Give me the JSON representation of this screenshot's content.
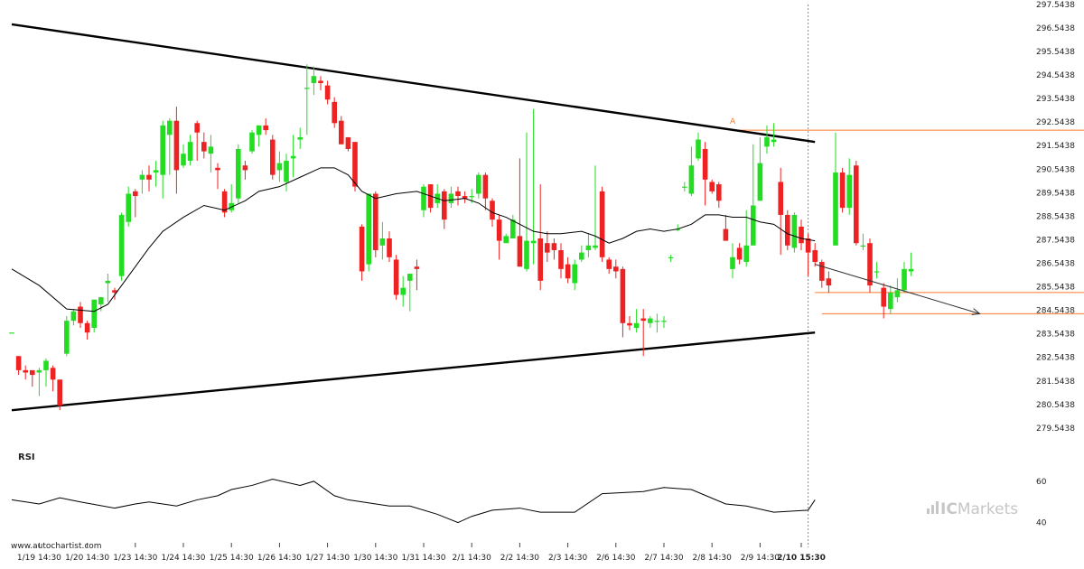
{
  "chart_data": {
    "type": "candlestick",
    "rsi_label": "RSI",
    "watermark": "www.autochartist.com",
    "brand": {
      "prefix": "IC",
      "name": "Markets"
    },
    "pattern_point_label": "A",
    "colors": {
      "up": "#22dd22",
      "down": "#ee2222",
      "level": "#ff7a2a",
      "trend": "#000000",
      "ma": "#000000"
    },
    "price_axis": {
      "ylim": [
        279.04,
        297.54
      ],
      "ticks": [
        "297.5438",
        "296.5438",
        "295.5438",
        "294.5438",
        "293.5438",
        "292.5438",
        "291.5438",
        "290.5438",
        "289.5438",
        "288.5438",
        "287.5438",
        "286.5438",
        "285.5438",
        "284.5438",
        "283.5438",
        "282.5438",
        "281.5438",
        "280.5438",
        "279.5438"
      ]
    },
    "rsi_axis": {
      "ylim": [
        35,
        70
      ],
      "ticks": [
        "60",
        "40"
      ]
    },
    "x_axis": {
      "ticks": [
        {
          "i": 4,
          "label": "1/19 14:30"
        },
        {
          "i": 11,
          "label": "1/20 14:30"
        },
        {
          "i": 18,
          "label": "1/23 14:30"
        },
        {
          "i": 25,
          "label": "1/24 14:30"
        },
        {
          "i": 32,
          "label": "1/25 14:30"
        },
        {
          "i": 39,
          "label": "1/26 14:30"
        },
        {
          "i": 46,
          "label": "1/27 14:30"
        },
        {
          "i": 53,
          "label": "1/30 14:30"
        },
        {
          "i": 60,
          "label": "1/31 14:30"
        },
        {
          "i": 67,
          "label": "2/1 14:30"
        },
        {
          "i": 74,
          "label": "2/2 14:30"
        },
        {
          "i": 81,
          "label": "2/3 14:30"
        },
        {
          "i": 88,
          "label": "2/6 14:30"
        },
        {
          "i": 95,
          "label": "2/7 14:30"
        },
        {
          "i": 102,
          "label": "2/8 14:30"
        },
        {
          "i": 109,
          "label": "2/9 14:30"
        },
        {
          "i": 115,
          "label": "2/10 15:30",
          "bold": true
        }
      ]
    },
    "candles": [
      [
        283.6,
        283.6,
        283.6,
        283.6
      ],
      [
        282.6,
        282.0,
        282.6,
        281.8
      ],
      [
        282.0,
        281.9,
        282.2,
        281.6
      ],
      [
        282.0,
        281.8,
        282.0,
        281.3
      ],
      [
        281.9,
        282.0,
        282.1,
        280.9
      ],
      [
        282.0,
        282.4,
        282.5,
        281.3
      ],
      [
        282.1,
        281.6,
        282.2,
        281.1
      ],
      [
        281.6,
        280.5,
        281.6,
        280.3
      ],
      [
        282.7,
        284.1,
        284.3,
        282.6
      ],
      [
        284.1,
        284.5,
        284.6,
        283.9
      ],
      [
        284.7,
        284.0,
        284.9,
        283.8
      ],
      [
        284.0,
        283.6,
        284.1,
        283.3
      ],
      [
        283.8,
        285.0,
        285.0,
        283.6
      ],
      [
        284.8,
        285.1,
        285.1,
        284.5
      ],
      [
        285.7,
        285.8,
        286.1,
        284.9
      ],
      [
        285.4,
        285.3,
        285.5,
        285.0
      ],
      [
        286.0,
        288.6,
        288.7,
        285.8
      ],
      [
        288.3,
        289.5,
        289.8,
        288.1
      ],
      [
        289.6,
        289.4,
        289.7,
        288.5
      ],
      [
        290.1,
        290.3,
        290.5,
        289.5
      ],
      [
        290.3,
        290.1,
        290.7,
        289.6
      ],
      [
        290.4,
        290.5,
        290.9,
        289.8
      ],
      [
        290.3,
        292.4,
        292.6,
        289.3
      ],
      [
        292.0,
        292.6,
        292.7,
        290.3
      ],
      [
        292.6,
        290.5,
        293.2,
        289.5
      ],
      [
        290.7,
        291.2,
        291.6,
        290.6
      ],
      [
        290.9,
        291.7,
        292.0,
        290.7
      ],
      [
        292.5,
        292.1,
        292.6,
        290.9
      ],
      [
        291.7,
        291.3,
        292.1,
        291.0
      ],
      [
        291.2,
        291.5,
        292.0,
        290.4
      ],
      [
        290.6,
        290.5,
        290.8,
        289.7
      ],
      [
        289.6,
        288.7,
        289.7,
        288.5
      ],
      [
        288.8,
        289.1,
        289.9,
        288.7
      ],
      [
        289.3,
        291.4,
        291.6,
        289.1
      ],
      [
        290.7,
        290.5,
        290.9,
        290.1
      ],
      [
        291.3,
        292.1,
        292.2,
        291.2
      ],
      [
        292.0,
        292.4,
        292.4,
        291.5
      ],
      [
        292.4,
        292.2,
        292.7,
        292.0
      ],
      [
        291.8,
        290.3,
        292.0,
        290.1
      ],
      [
        290.5,
        290.8,
        291.3,
        290.0
      ],
      [
        290.0,
        290.9,
        291.2,
        289.6
      ],
      [
        291.0,
        291.1,
        292.0,
        290.2
      ],
      [
        291.8,
        291.9,
        292.3,
        291.4
      ],
      [
        294.0,
        294.0,
        295.0,
        292.0
      ],
      [
        294.2,
        294.5,
        294.9,
        293.7
      ],
      [
        294.3,
        294.2,
        294.5,
        293.9
      ],
      [
        294.1,
        293.5,
        294.3,
        293.3
      ],
      [
        293.4,
        292.5,
        293.6,
        292.3
      ],
      [
        292.6,
        291.6,
        292.8,
        291.6
      ],
      [
        291.9,
        291.4,
        291.9,
        291.3
      ],
      [
        291.7,
        289.8,
        291.7,
        289.6
      ],
      [
        288.1,
        286.2,
        288.2,
        285.8
      ],
      [
        286.5,
        289.5,
        289.5,
        286.2
      ],
      [
        289.5,
        287.1,
        289.6,
        286.8
      ],
      [
        287.3,
        287.6,
        288.3,
        286.7
      ],
      [
        287.6,
        286.8,
        287.9,
        286.6
      ],
      [
        286.7,
        285.2,
        286.9,
        285.0
      ],
      [
        285.2,
        285.5,
        286.0,
        284.7
      ],
      [
        285.8,
        286.1,
        286.1,
        284.5
      ],
      [
        286.4,
        286.3,
        286.7,
        285.4
      ],
      [
        288.8,
        289.8,
        289.9,
        288.5
      ],
      [
        289.9,
        288.9,
        289.9,
        288.7
      ],
      [
        289.1,
        289.5,
        289.9,
        288.9
      ],
      [
        289.6,
        288.4,
        289.7,
        288.0
      ],
      [
        289.1,
        289.5,
        289.8,
        288.9
      ],
      [
        289.6,
        289.4,
        289.8,
        289.0
      ],
      [
        289.4,
        289.3,
        289.6,
        289.1
      ],
      [
        289.4,
        289.4,
        289.7,
        289.1
      ],
      [
        289.5,
        290.3,
        290.4,
        289.3
      ],
      [
        290.3,
        289.3,
        290.4,
        288.8
      ],
      [
        289.2,
        288.4,
        289.3,
        288.1
      ],
      [
        288.4,
        287.5,
        288.6,
        286.7
      ],
      [
        287.4,
        287.7,
        287.8,
        287.4
      ],
      [
        287.6,
        288.4,
        288.6,
        287.6
      ],
      [
        287.7,
        286.4,
        291.0,
        286.4
      ],
      [
        286.3,
        287.5,
        292.1,
        286.2
      ],
      [
        287.4,
        287.5,
        293.1,
        286.5
      ],
      [
        287.6,
        285.8,
        289.9,
        285.4
      ],
      [
        287.4,
        287.0,
        287.9,
        286.6
      ],
      [
        287.4,
        287.1,
        287.6,
        286.7
      ],
      [
        287.1,
        286.3,
        287.4,
        285.9
      ],
      [
        286.5,
        285.9,
        286.8,
        285.7
      ],
      [
        285.7,
        286.5,
        286.7,
        285.4
      ],
      [
        286.7,
        287.0,
        287.3,
        286.6
      ],
      [
        287.1,
        287.3,
        287.8,
        286.8
      ],
      [
        287.2,
        287.3,
        290.7,
        287.1
      ],
      [
        289.6,
        286.8,
        289.8,
        286.6
      ],
      [
        286.7,
        286.3,
        286.8,
        286.1
      ],
      [
        286.4,
        286.2,
        286.7,
        285.9
      ],
      [
        286.3,
        284.0,
        286.4,
        283.4
      ],
      [
        284.0,
        283.9,
        284.3,
        283.7
      ],
      [
        283.8,
        284.0,
        284.6,
        283.6
      ],
      [
        284.2,
        284.1,
        284.6,
        282.6
      ],
      [
        284.0,
        284.2,
        284.3,
        283.8
      ],
      [
        284.1,
        284.1,
        284.4,
        283.6
      ],
      [
        284.1,
        284.1,
        284.3,
        283.8
      ],
      [
        286.8,
        286.8,
        286.9,
        286.6
      ],
      [
        288.0,
        288.0,
        288.2,
        287.9
      ],
      [
        289.8,
        289.8,
        290.0,
        289.6
      ],
      [
        289.5,
        290.7,
        291.5,
        289.4
      ],
      [
        291.0,
        291.8,
        292.1,
        290.9
      ],
      [
        291.4,
        290.1,
        291.7,
        289.0
      ],
      [
        290.0,
        289.6,
        290.1,
        289.5
      ],
      [
        289.9,
        289.2,
        290.0,
        288.9
      ],
      [
        288.0,
        287.5,
        288.6,
        287.5
      ],
      [
        286.3,
        286.8,
        287.4,
        285.9
      ],
      [
        287.2,
        286.7,
        287.4,
        286.5
      ],
      [
        286.6,
        287.3,
        288.8,
        286.4
      ],
      [
        287.3,
        289.0,
        291.6,
        287.3
      ],
      [
        289.2,
        290.8,
        291.9,
        289.2
      ],
      [
        291.5,
        291.9,
        292.4,
        291.2
      ],
      [
        291.7,
        291.8,
        292.5,
        291.5
      ],
      [
        290.0,
        288.6,
        290.6,
        286.9
      ],
      [
        288.6,
        287.3,
        288.8,
        287.1
      ],
      [
        287.2,
        288.6,
        288.7,
        287.0
      ],
      [
        288.1,
        287.4,
        288.4,
        287.1
      ],
      [
        287.6,
        287.0,
        287.8,
        286.0
      ],
      [
        287.1,
        286.6,
        287.4,
        286.4
      ],
      [
        286.6,
        285.8,
        286.7,
        285.5
      ],
      [
        285.9,
        285.6,
        286.2,
        285.3
      ],
      [
        287.3,
        290.4,
        292.1,
        287.3
      ],
      [
        290.4,
        288.9,
        290.6,
        288.7
      ],
      [
        288.9,
        290.3,
        291.0,
        288.6
      ],
      [
        290.7,
        287.4,
        290.9,
        287.3
      ],
      [
        287.3,
        287.3,
        287.8,
        287.1
      ],
      [
        287.4,
        285.6,
        287.6,
        285.3
      ],
      [
        286.2,
        286.2,
        286.6,
        285.9
      ],
      [
        285.5,
        284.7,
        285.7,
        284.2
      ],
      [
        284.6,
        285.3,
        285.6,
        284.4
      ],
      [
        285.1,
        285.4,
        285.9,
        284.9
      ],
      [
        285.4,
        286.3,
        286.6,
        285.3
      ],
      [
        286.2,
        286.3,
        287.0,
        286.0
      ]
    ],
    "moving_average": [
      [
        0,
        286.3
      ],
      [
        4,
        285.6
      ],
      [
        8,
        284.6
      ],
      [
        12,
        284.5
      ],
      [
        14,
        284.8
      ],
      [
        17,
        286.0
      ],
      [
        20,
        287.2
      ],
      [
        22,
        287.9
      ],
      [
        25,
        288.5
      ],
      [
        28,
        289.0
      ],
      [
        31,
        288.8
      ],
      [
        34,
        289.2
      ],
      [
        36,
        289.6
      ],
      [
        39,
        289.8
      ],
      [
        42,
        290.2
      ],
      [
        45,
        290.6
      ],
      [
        47,
        290.6
      ],
      [
        49,
        290.3
      ],
      [
        51,
        289.6
      ],
      [
        53,
        289.3
      ],
      [
        56,
        289.5
      ],
      [
        59,
        289.6
      ],
      [
        61,
        289.4
      ],
      [
        63,
        289.2
      ],
      [
        66,
        289.3
      ],
      [
        68,
        289.1
      ],
      [
        70,
        288.7
      ],
      [
        72,
        288.5
      ],
      [
        74,
        288.2
      ],
      [
        76,
        287.9
      ],
      [
        78,
        287.8
      ],
      [
        80,
        287.8
      ],
      [
        83,
        287.9
      ],
      [
        85,
        287.7
      ],
      [
        87,
        287.4
      ],
      [
        89,
        287.6
      ],
      [
        91,
        287.9
      ],
      [
        93,
        288.0
      ],
      [
        95,
        287.9
      ],
      [
        97,
        288.0
      ],
      [
        99,
        288.2
      ],
      [
        101,
        288.6
      ],
      [
        103,
        288.6
      ],
      [
        105,
        288.5
      ],
      [
        107,
        288.5
      ],
      [
        109,
        288.3
      ],
      [
        111,
        288.2
      ],
      [
        113,
        287.8
      ],
      [
        115,
        287.6
      ],
      [
        117,
        287.5
      ]
    ],
    "trendlines": [
      {
        "from": [
          0,
          296.7
        ],
        "to": [
          117,
          291.7
        ]
      },
      {
        "from": [
          0,
          280.3
        ],
        "to": [
          117,
          283.6
        ]
      }
    ],
    "forecast_arrow": {
      "from": [
        117,
        286.5
      ],
      "to": [
        141,
        284.4
      ]
    },
    "levels": [
      {
        "price": 292.2,
        "from": 105,
        "to": 159
      },
      {
        "price": 285.3,
        "from": 117,
        "to": 159
      },
      {
        "price": 284.4,
        "from": 118,
        "to": 159
      }
    ],
    "pattern_point": {
      "i": 105,
      "price": 292.4
    },
    "current_time_index": 116,
    "rsi": [
      [
        0,
        51
      ],
      [
        4,
        49
      ],
      [
        7,
        52
      ],
      [
        10,
        50
      ],
      [
        15,
        47
      ],
      [
        18,
        49
      ],
      [
        20,
        50
      ],
      [
        24,
        48
      ],
      [
        27,
        51
      ],
      [
        30,
        53
      ],
      [
        32,
        56
      ],
      [
        35,
        58
      ],
      [
        38,
        61
      ],
      [
        42,
        58
      ],
      [
        44,
        60
      ],
      [
        47,
        53
      ],
      [
        49,
        51
      ],
      [
        55,
        48
      ],
      [
        58,
        48
      ],
      [
        62,
        44
      ],
      [
        65,
        40
      ],
      [
        67,
        43
      ],
      [
        70,
        46
      ],
      [
        74,
        47
      ],
      [
        77,
        45
      ],
      [
        82,
        45
      ],
      [
        86,
        54
      ],
      [
        92,
        55
      ],
      [
        95,
        57
      ],
      [
        99,
        56
      ],
      [
        104,
        49
      ],
      [
        107,
        48
      ],
      [
        111,
        45
      ],
      [
        116,
        46
      ],
      [
        117,
        51
      ]
    ]
  }
}
